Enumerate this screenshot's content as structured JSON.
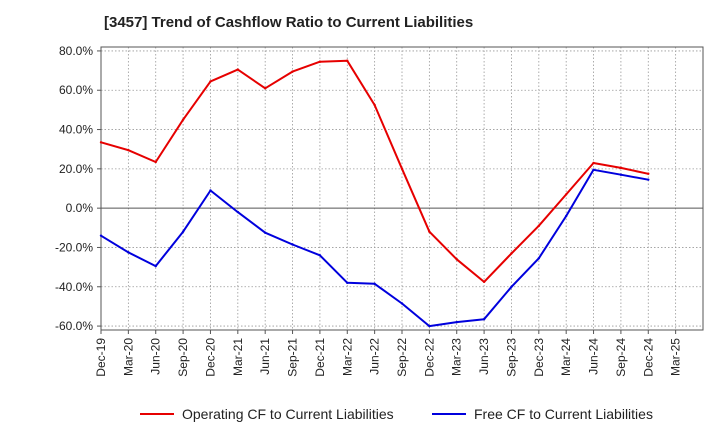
{
  "title": "[3457]  Trend of Cashflow Ratio to Current Liabilities",
  "chart_data": {
    "type": "line",
    "title": "[3457]  Trend of Cashflow Ratio to Current Liabilities",
    "xlabel": "",
    "ylabel": "",
    "ylim": [
      -62,
      82
    ],
    "yticks": [
      -60,
      -40,
      -20,
      0,
      20,
      40,
      60,
      80
    ],
    "ytick_labels": [
      "-60.0%",
      "-40.0%",
      "-20.0%",
      "0.0%",
      "20.0%",
      "40.0%",
      "60.0%",
      "80.0%"
    ],
    "x_tick_labels": [
      "Dec-19",
      "Mar-20",
      "Jun-20",
      "Sep-20",
      "Dec-20",
      "Mar-21",
      "Jun-21",
      "Sep-21",
      "Dec-21",
      "Mar-22",
      "Jun-22",
      "Sep-22",
      "Dec-22",
      "Mar-23",
      "Jun-23",
      "Sep-23",
      "Dec-23",
      "Mar-24",
      "Jun-24",
      "Sep-24",
      "Dec-24",
      "Mar-25"
    ],
    "grid": true,
    "legend_position": "bottom",
    "series": [
      {
        "name": "Operating CF to Current Liabilities",
        "color": "#e60000",
        "values": [
          33.5,
          29.5,
          23.5,
          45.0,
          64.5,
          70.5,
          61.0,
          69.5,
          74.5,
          75.0,
          52.5,
          20.0,
          -12.0,
          -26.0,
          -37.5,
          -23.0,
          -9.0,
          7.0,
          23.0,
          20.5,
          17.5,
          null
        ]
      },
      {
        "name": "Free CF to Current Liabilities",
        "color": "#0000dd",
        "values": [
          -14.0,
          -22.5,
          -29.5,
          -12.0,
          9.0,
          -2.0,
          -12.5,
          -18.5,
          -24.0,
          -38.0,
          -38.5,
          -48.5,
          -60.0,
          -58.0,
          -56.5,
          -40.0,
          -25.5,
          -4.0,
          19.5,
          17.0,
          14.5,
          null
        ]
      }
    ]
  }
}
